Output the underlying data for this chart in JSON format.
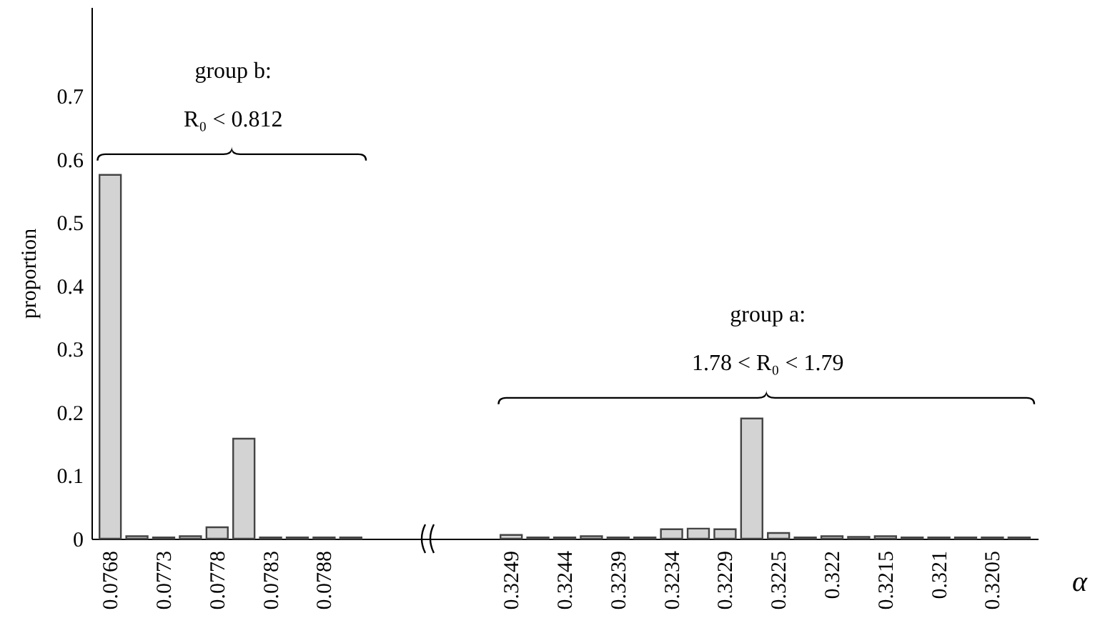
{
  "chart_data": {
    "type": "bar",
    "xlabel": "α",
    "ylabel": "proportion",
    "categories": [
      "0.0768",
      null,
      "0.0773",
      null,
      "0.0778",
      null,
      "0.0783",
      null,
      "0.0788",
      null,
      null,
      null,
      null,
      null,
      null,
      "0.3249",
      null,
      "0.3244",
      null,
      "0.3239",
      null,
      "0.3234",
      null,
      "0.3229",
      null,
      "0.3225",
      null,
      "0.322",
      null,
      "0.3215",
      null,
      "0.321",
      null,
      "0.3205",
      null
    ],
    "values": [
      0.575,
      0.004,
      0.002,
      0.004,
      0.018,
      0.158,
      0.002,
      0.002,
      0.002,
      0.002,
      null,
      null,
      null,
      null,
      null,
      0.006,
      0.002,
      0.002,
      0.004,
      0.002,
      0.002,
      0.015,
      0.016,
      0.015,
      0.19,
      0.009,
      0.002,
      0.004,
      0.003,
      0.004,
      0.002,
      0.002,
      0.002,
      0.002,
      0.002
    ],
    "color": "#d3d3d3",
    "ylim": [
      0,
      0.84
    ],
    "yticks": [
      0,
      0.1,
      0.2,
      0.3,
      0.4,
      0.5,
      0.6,
      0.7
    ],
    "annotations": [
      "group b:",
      "R₀ < 0.812",
      "group a:",
      "1.78 < R₀ < 1.79"
    ]
  }
}
